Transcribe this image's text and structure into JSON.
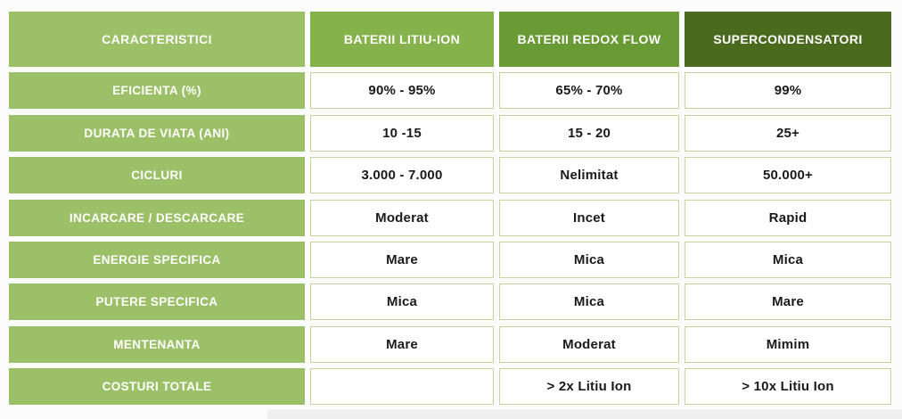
{
  "chart_data": {
    "type": "table",
    "title": "",
    "columns": [
      "CARACTERISTICI",
      "BATERII LITIU-ION",
      "BATERII REDOX FLOW",
      "SUPERCONDENSATORI"
    ],
    "rows": [
      [
        "EFICIENTA (%)",
        "90% - 95%",
        "65% - 70%",
        "99%"
      ],
      [
        "DURATA DE VIATA (ANI)",
        "10 -15",
        "15 - 20",
        "25+"
      ],
      [
        "CICLURI",
        "3.000 - 7.000",
        "Nelimitat",
        "50.000+"
      ],
      [
        "INCARCARE / DESCARCARE",
        "Moderat",
        "Incet",
        "Rapid"
      ],
      [
        "ENERGIE SPECIFICA",
        "Mare",
        "Mica",
        "Mica"
      ],
      [
        "PUTERE SPECIFICA",
        "Mica",
        "Mica",
        "Mare"
      ],
      [
        "MENTENANTA",
        "Mare",
        "Moderat",
        "Mimim"
      ],
      [
        "COSTURI TOTALE",
        "",
        "> 2x Litiu Ion",
        "> 10x Litiu Ion"
      ]
    ],
    "legend": "none",
    "grid": "cell-borders"
  },
  "colors": {
    "light_green": "#9cc068",
    "mid_green": "#85b24a",
    "deep_green": "#699a35",
    "dark_green": "#4a6b1e",
    "cell_border": "#c5d49e",
    "header_text": "#ffffff",
    "data_text": "#1a1a1a"
  }
}
